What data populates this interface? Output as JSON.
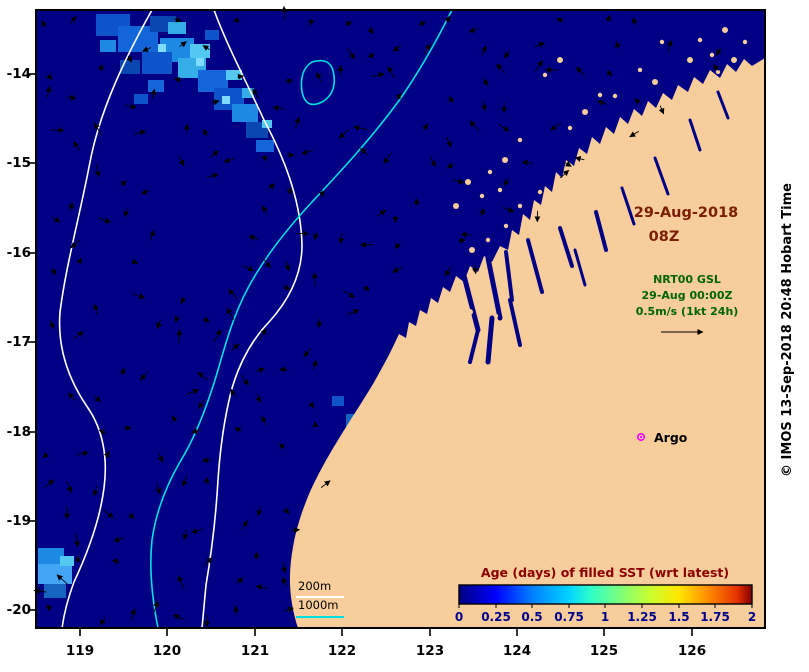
{
  "figure": {
    "credit_text": "© IMOS 13-Sep-2018 20:48 Hobart Time"
  },
  "axes": {
    "x_ticks": [
      "119",
      "120",
      "121",
      "122",
      "123",
      "124",
      "125",
      "126"
    ],
    "y_ticks": [
      "-14",
      "-15",
      "-16",
      "-17",
      "-18",
      "-19",
      "-20"
    ]
  },
  "annotations": {
    "datetime_line1": "29-Aug-2018",
    "datetime_line2": "08Z",
    "gsl_line1": "NRT00 GSL",
    "gsl_line2": "29-Aug 00:00Z",
    "gsl_line3": "0.5m/s (1kt 24h)",
    "argo_label": "Argo",
    "depth_200_label": "200m",
    "depth_1000_label": "1000m"
  },
  "colorbar": {
    "title": "Age (days) of filled SST (wrt latest)",
    "ticks": [
      "0",
      "0.25",
      "0.5",
      "0.75",
      "1",
      "1.25",
      "1.5",
      "1.75",
      "2"
    ]
  },
  "colors": {
    "ocean": "#000085",
    "land": "#F7CD9C",
    "contour_200m": "#FFFFFF",
    "contour_1000m": "#00E0E0",
    "datetime_text": "#7A1E00",
    "gsl_text": "#006400",
    "colorbar_title": "#8B0000",
    "colorbar_tick_text": "#00008B",
    "argo_marker": "#FF00FF"
  }
}
